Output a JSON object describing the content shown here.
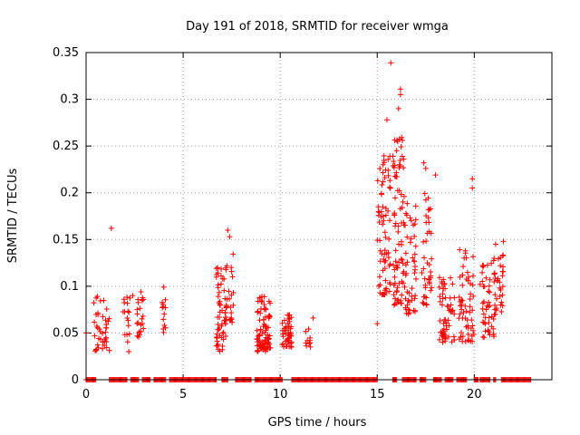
{
  "chart_data": {
    "type": "scatter",
    "title": "Day 191 of 2018, SRMTID for receiver wmga",
    "xlabel": "GPS time / hours",
    "ylabel": "SRMTID / TECUs",
    "xlim": [
      0,
      24
    ],
    "ylim": [
      0,
      0.35
    ],
    "xticks": [
      0,
      5,
      10,
      15,
      20
    ],
    "xtick_labels": [
      "0",
      "5",
      "10",
      "15",
      "20"
    ],
    "yticks": [
      0,
      0.05,
      0.1,
      0.15,
      0.2,
      0.25,
      0.3,
      0.35
    ],
    "ytick_labels": [
      "0",
      "0.05",
      "0.1",
      "0.15",
      "0.2",
      "0.25",
      "0.3",
      "0.35"
    ],
    "grid": true,
    "marker": "+",
    "color": "#ff0000",
    "zero_segments": [
      [
        0.0,
        0.5
      ],
      [
        1.2,
        2.1
      ],
      [
        2.3,
        2.7
      ],
      [
        2.9,
        3.3
      ],
      [
        3.5,
        4.1
      ],
      [
        4.3,
        6.7
      ],
      [
        7.0,
        7.3
      ],
      [
        7.7,
        8.5
      ],
      [
        8.7,
        10.1
      ],
      [
        10.6,
        15.0
      ],
      [
        15.8,
        16.0
      ],
      [
        16.3,
        17.0
      ],
      [
        17.2,
        17.5
      ],
      [
        17.9,
        18.3
      ],
      [
        18.5,
        18.9
      ],
      [
        19.1,
        19.6
      ],
      [
        20.0,
        20.2
      ],
      [
        20.3,
        20.8
      ],
      [
        21.0,
        21.1
      ],
      [
        21.4,
        22.9
      ]
    ],
    "clusters": [
      {
        "x_range": [
          0.4,
          1.2
        ],
        "y_range": [
          0.03,
          0.09
        ],
        "count": 40
      },
      {
        "x_range": [
          1.9,
          2.3
        ],
        "y_range": [
          0.04,
          0.09
        ],
        "count": 16
      },
      {
        "x_range": [
          2.6,
          3.0
        ],
        "y_range": [
          0.045,
          0.095
        ],
        "count": 22
      },
      {
        "x_range": [
          3.9,
          4.1
        ],
        "y_range": [
          0.05,
          0.09
        ],
        "count": 12
      },
      {
        "x_range": [
          6.7,
          7.2
        ],
        "y_range": [
          0.03,
          0.12
        ],
        "count": 55
      },
      {
        "x_range": [
          7.2,
          7.6
        ],
        "y_range": [
          0.06,
          0.14
        ],
        "count": 25
      },
      {
        "x_range": [
          8.8,
          9.5
        ],
        "y_range": [
          0.03,
          0.09
        ],
        "count": 90
      },
      {
        "x_range": [
          10.1,
          10.6
        ],
        "y_range": [
          0.035,
          0.07
        ],
        "count": 50
      },
      {
        "x_range": [
          11.3,
          11.6
        ],
        "y_range": [
          0.035,
          0.055
        ],
        "count": 10
      },
      {
        "x_range": [
          15.0,
          15.7
        ],
        "y_range": [
          0.09,
          0.24
        ],
        "count": 70
      },
      {
        "x_range": [
          15.8,
          16.4
        ],
        "y_range": [
          0.08,
          0.26
        ],
        "count": 80
      },
      {
        "x_range": [
          16.4,
          17.0
        ],
        "y_range": [
          0.07,
          0.19
        ],
        "count": 50
      },
      {
        "x_range": [
          17.3,
          17.8
        ],
        "y_range": [
          0.08,
          0.2
        ],
        "count": 40
      },
      {
        "x_range": [
          18.2,
          19.0
        ],
        "y_range": [
          0.04,
          0.11
        ],
        "count": 60
      },
      {
        "x_range": [
          19.2,
          20.0
        ],
        "y_range": [
          0.04,
          0.14
        ],
        "count": 60
      },
      {
        "x_range": [
          20.4,
          21.1
        ],
        "y_range": [
          0.045,
          0.13
        ],
        "count": 50
      },
      {
        "x_range": [
          21.0,
          21.5
        ],
        "y_range": [
          0.07,
          0.14
        ],
        "count": 30
      }
    ],
    "notable_points": [
      {
        "x": 0.0,
        "y": 0.05
      },
      {
        "x": 1.3,
        "y": 0.162
      },
      {
        "x": 2.2,
        "y": 0.03
      },
      {
        "x": 2.4,
        "y": 0.09
      },
      {
        "x": 4.0,
        "y": 0.099
      },
      {
        "x": 7.3,
        "y": 0.16
      },
      {
        "x": 7.4,
        "y": 0.153
      },
      {
        "x": 11.7,
        "y": 0.066
      },
      {
        "x": 15.0,
        "y": 0.06
      },
      {
        "x": 15.5,
        "y": 0.278
      },
      {
        "x": 15.7,
        "y": 0.339
      },
      {
        "x": 16.2,
        "y": 0.311
      },
      {
        "x": 16.2,
        "y": 0.305
      },
      {
        "x": 16.1,
        "y": 0.29
      },
      {
        "x": 15.3,
        "y": 0.23
      },
      {
        "x": 16.0,
        "y": 0.245
      },
      {
        "x": 17.4,
        "y": 0.232
      },
      {
        "x": 17.5,
        "y": 0.226
      },
      {
        "x": 18.0,
        "y": 0.219
      },
      {
        "x": 19.9,
        "y": 0.215
      },
      {
        "x": 19.9,
        "y": 0.205
      },
      {
        "x": 20.3,
        "y": 0.102
      },
      {
        "x": 21.1,
        "y": 0.145
      },
      {
        "x": 21.5,
        "y": 0.148
      }
    ]
  }
}
